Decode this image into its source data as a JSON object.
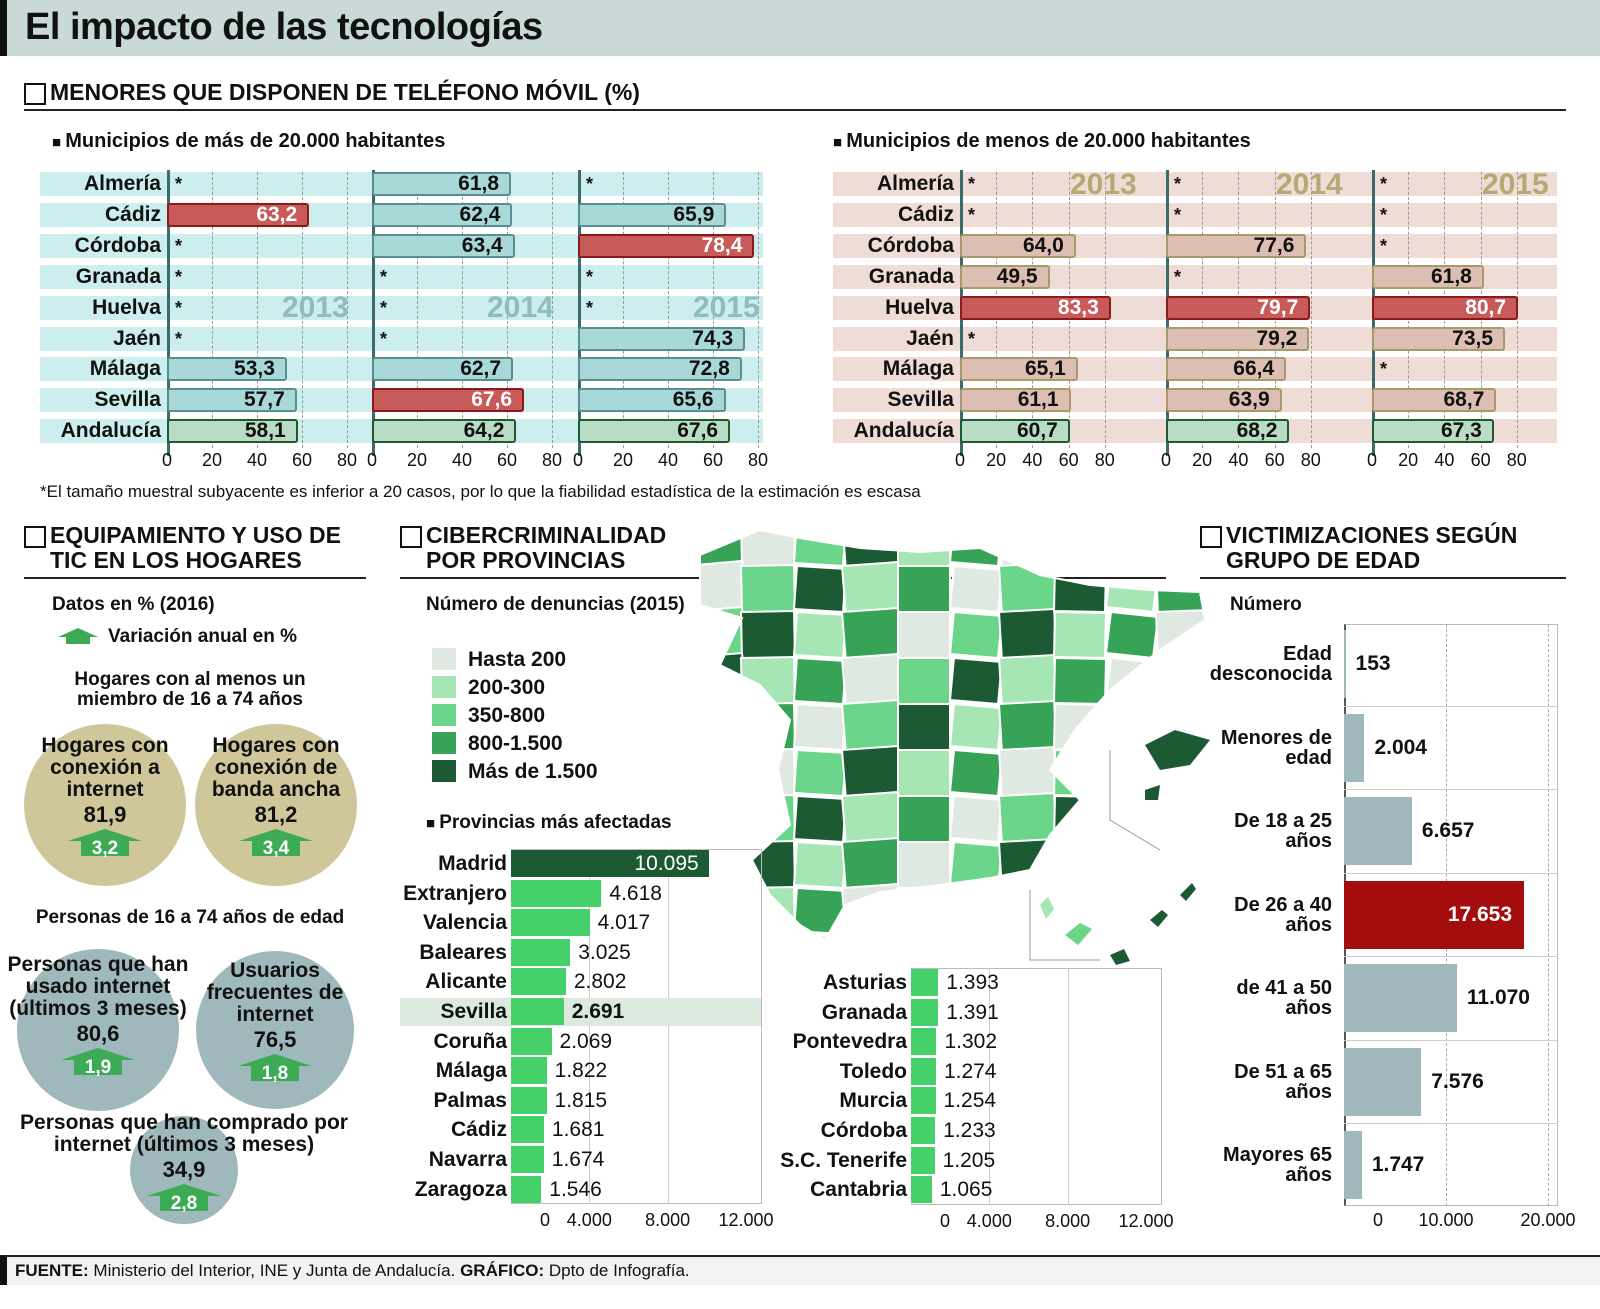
{
  "title": "El impacto de las tecnologías",
  "mobile": {
    "heading": "MENORES QUE DISPONEN DE TELÉFONO MÓVIL (%)",
    "provinces": [
      "Almería",
      "Cádiz",
      "Córdoba",
      "Granada",
      "Huelva",
      "Jaén",
      "Málaga",
      "Sevilla",
      "Andalucía"
    ],
    "years": [
      "2013",
      "2014",
      "2015"
    ],
    "ticks": [
      "0",
      "20",
      "40",
      "60",
      "80"
    ],
    "missing_mark": "*",
    "footnote": "*El tamaño muestral subyacente es inferior a 20 casos, por lo que la fiabilidad estadística de la estimación es escasa",
    "colors": {
      "large_bar": "#a9d8d8",
      "large_bg": "#cdeeee",
      "small_bar": "#ddbeb3",
      "small_bg": "#efdcd6",
      "highlight": "#c85a5a",
      "total": "#b9dcc6"
    }
  },
  "chart_data": [
    {
      "type": "bar",
      "title": "Municipios de más de 20.000 habitantes",
      "categories": [
        "Almería",
        "Cádiz",
        "Córdoba",
        "Granada",
        "Huelva",
        "Jaén",
        "Málaga",
        "Sevilla",
        "Andalucía"
      ],
      "xlim": [
        0,
        80
      ],
      "series": [
        {
          "name": "2013",
          "values": [
            null,
            63.2,
            null,
            null,
            null,
            null,
            53.3,
            57.7,
            58.1
          ],
          "labels": [
            "*",
            "63,2",
            "*",
            "*",
            "*",
            "*",
            "53,3",
            "57,7",
            "58,1"
          ]
        },
        {
          "name": "2014",
          "values": [
            61.8,
            62.4,
            63.4,
            null,
            null,
            null,
            62.7,
            67.6,
            64.2
          ],
          "labels": [
            "61,8",
            "62,4",
            "63,4",
            "*",
            "*",
            "*",
            "62,7",
            "67,6",
            "64,2"
          ]
        },
        {
          "name": "2015",
          "values": [
            null,
            65.9,
            78.4,
            null,
            null,
            74.3,
            72.8,
            65.6,
            67.6
          ],
          "labels": [
            "*",
            "65,9",
            "78,4",
            "*",
            "*",
            "74,3",
            "72,8",
            "65,6",
            "67,6"
          ]
        }
      ]
    },
    {
      "type": "bar",
      "title": "Municipios de menos de 20.000 habitantes",
      "categories": [
        "Almería",
        "Cádiz",
        "Córdoba",
        "Granada",
        "Huelva",
        "Jaén",
        "Málaga",
        "Sevilla",
        "Andalucía"
      ],
      "xlim": [
        0,
        100
      ],
      "series": [
        {
          "name": "2013",
          "values": [
            null,
            null,
            64.0,
            49.5,
            83.3,
            null,
            65.1,
            61.1,
            60.7
          ],
          "labels": [
            "*",
            "*",
            "64,0",
            "49,5",
            "83,3",
            "*",
            "65,1",
            "61,1",
            "60,7"
          ]
        },
        {
          "name": "2014",
          "values": [
            null,
            null,
            77.6,
            null,
            79.7,
            79.2,
            66.4,
            63.9,
            68.2
          ],
          "labels": [
            "*",
            "*",
            "77,6",
            "*",
            "79,7",
            "79,2",
            "66,4",
            "63,9",
            "68,2"
          ]
        },
        {
          "name": "2015",
          "values": [
            null,
            null,
            null,
            61.8,
            80.7,
            73.5,
            null,
            68.7,
            67.3
          ],
          "labels": [
            "*",
            "*",
            "*",
            "61,8",
            "80,7",
            "73,5",
            "*",
            "68,7",
            "67,3"
          ]
        }
      ]
    },
    {
      "type": "bar",
      "title": "Provincias más afectadas",
      "categories": [
        "Madrid",
        "Extranjero",
        "Valencia",
        "Baleares",
        "Alicante",
        "Sevilla",
        "Coruña",
        "Málaga",
        "Palmas",
        "Cádiz",
        "Navarra",
        "Zaragoza"
      ],
      "values": [
        10095,
        4618,
        4017,
        3025,
        2802,
        2691,
        2069,
        1822,
        1815,
        1681,
        1674,
        1546
      ],
      "labels": [
        "10.095",
        "4.618",
        "4.017",
        "3.025",
        "2.802",
        "2.691",
        "2.069",
        "1.822",
        "1.815",
        "1.681",
        "1.674",
        "1.546"
      ],
      "xlim": [
        0,
        12000
      ],
      "ticks": [
        "0",
        "4.000",
        "8.000",
        "12.000"
      ]
    },
    {
      "type": "bar",
      "categories": [
        "Asturias",
        "Granada",
        "Pontevedra",
        "Toledo",
        "Murcia",
        "Córdoba",
        "S.C. Tenerife",
        "Cantabria"
      ],
      "values": [
        1393,
        1391,
        1302,
        1274,
        1254,
        1233,
        1205,
        1065
      ],
      "labels": [
        "1.393",
        "1.391",
        "1.302",
        "1.274",
        "1.254",
        "1.233",
        "1.205",
        "1.065"
      ],
      "xlim": [
        0,
        12000
      ],
      "ticks": [
        "0",
        "4.000",
        "8.000",
        "12.000"
      ]
    },
    {
      "type": "bar",
      "title": "Número",
      "categories": [
        "Edad desconocida",
        "Menores de edad",
        "De 18 a 25 años",
        "De 26 a 40 años",
        "de 41 a 50 años",
        "De 51 a 65 años",
        "Mayores 65 años"
      ],
      "values": [
        153,
        2004,
        6657,
        17653,
        11070,
        7576,
        1747
      ],
      "labels": [
        "153",
        "2.004",
        "6.657",
        "17.653",
        "11.070",
        "7.576",
        "1.747"
      ],
      "xlim": [
        0,
        20000
      ],
      "ticks": [
        "0",
        "10.000",
        "20.000"
      ]
    }
  ],
  "subtitles": {
    "large": "Municipios de más de 20.000 habitantes",
    "small": "Municipios de menos de 20.000 habitantes"
  },
  "tic": {
    "heading1": "EQUIPAMIENTO Y USO DE",
    "heading2": "TIC EN LOS HOGARES",
    "data_note": "Datos en % (2016)",
    "variation_note": "Variación anual en %",
    "group1": "Hogares con al menos un miembro de 16 a 74 años",
    "group2": "Personas de 16 a 74 años de edad",
    "items": [
      {
        "label": "Hogares con conexión a internet",
        "value": "81,9",
        "change": "3,2"
      },
      {
        "label": "Hogares con conexión de banda ancha",
        "value": "81,2",
        "change": "3,4"
      },
      {
        "label": "Personas que han usado internet (últimos 3 meses)",
        "value": "80,6",
        "change": "1,9"
      },
      {
        "label": "Usuarios frecuentes de internet",
        "value": "76,5",
        "change": "1,8"
      },
      {
        "label": "Personas que han comprado por internet (últimos 3 meses)",
        "value": "34,9",
        "change": "2,8"
      }
    ]
  },
  "cyber": {
    "heading1": "CIBERCRIMINALIDAD",
    "heading2": "POR PROVINCIAS",
    "subtitle": "Número de denuncias (2015)",
    "legend": [
      {
        "label": "Hasta 200",
        "color": "#dfe9e2"
      },
      {
        "label": "200-300",
        "color": "#a6e6b4"
      },
      {
        "label": "350-800",
        "color": "#6bd58a"
      },
      {
        "label": "800-1.500",
        "color": "#36a356"
      },
      {
        "label": "Más de 1.500",
        "color": "#1c5a33"
      }
    ],
    "most_affected": "Provincias más afectadas"
  },
  "victims": {
    "heading1": "VICTIMIZACIONES SEGÚN",
    "heading2": "GRUPO DE EDAD",
    "highlight": "#a30d0d",
    "bar": "#9fb8bb"
  },
  "footer": {
    "source_label": "FUENTE:",
    "source": "Ministerio del Interior, INE y Junta de Andalucía.",
    "graphic_label": "GRÁFICO:",
    "graphic": "Dpto de Infografía."
  }
}
